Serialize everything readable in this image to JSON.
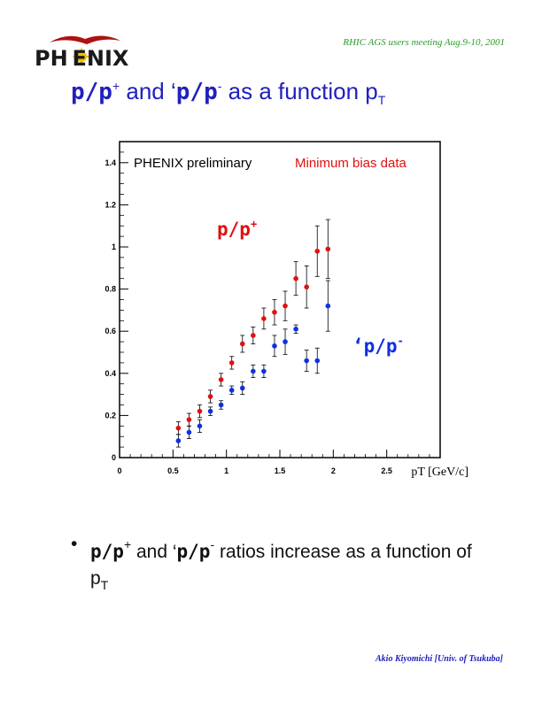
{
  "header": {
    "logo_text": "PH ENIX",
    "meeting": "RHIC AGS  users meeting   Aug.9-10, 2001"
  },
  "title": {
    "part1": "p/p",
    "sup1": "+",
    "part2": " and ‘",
    "part3": "p/p",
    "sup2": "-",
    "part4": " as a function p",
    "sub": "T"
  },
  "chart_data": {
    "type": "scatter",
    "title": "",
    "annotations": [
      "PHENIX preliminary",
      "Minimum bias data",
      "p/p+",
      "‘p/p-"
    ],
    "xlabel": "pT [GeV/c]",
    "ylabel": "",
    "xlim": [
      0,
      3
    ],
    "ylim": [
      0,
      1.5
    ],
    "x_ticks": [
      "0",
      "0.5",
      "1",
      "1.5",
      "2",
      "2.5"
    ],
    "y_ticks": [
      "0",
      "0.2",
      "0.4",
      "0.6",
      "0.8",
      "1",
      "1.2",
      "1.4"
    ],
    "grid": false,
    "series": [
      {
        "name": "p/p+",
        "color": "#e01010",
        "x": [
          0.55,
          0.65,
          0.75,
          0.85,
          0.95,
          1.05,
          1.15,
          1.25,
          1.35,
          1.45,
          1.55,
          1.65,
          1.75,
          1.85,
          1.95
        ],
        "y": [
          0.14,
          0.18,
          0.22,
          0.29,
          0.37,
          0.45,
          0.54,
          0.58,
          0.66,
          0.69,
          0.72,
          0.85,
          0.81,
          0.98,
          0.99
        ],
        "err": [
          0.03,
          0.03,
          0.03,
          0.03,
          0.03,
          0.03,
          0.04,
          0.04,
          0.05,
          0.06,
          0.07,
          0.08,
          0.1,
          0.12,
          0.14
        ]
      },
      {
        "name": "‘p/p-",
        "color": "#1030e0",
        "x": [
          0.55,
          0.65,
          0.75,
          0.85,
          0.95,
          1.05,
          1.15,
          1.25,
          1.35,
          1.45,
          1.55,
          1.65,
          1.75,
          1.85,
          1.95
        ],
        "y": [
          0.08,
          0.12,
          0.15,
          0.22,
          0.25,
          0.32,
          0.33,
          0.41,
          0.41,
          0.53,
          0.55,
          0.61,
          0.46,
          0.46,
          0.72
        ],
        "err": [
          0.03,
          0.03,
          0.03,
          0.02,
          0.02,
          0.02,
          0.03,
          0.03,
          0.03,
          0.05,
          0.06,
          0.02,
          0.05,
          0.06,
          0.12
        ]
      }
    ]
  },
  "bullet": {
    "dot": "•",
    "p1": "p/p",
    "sup1": "+",
    "t1": " and ‘",
    "p2": "p/p",
    "sup2": "-",
    "t2": "  ratios increase as a function of p",
    "sub": "T"
  },
  "footer": "Akio Kiyomichi [Univ. of Tsukuba]",
  "colors": {
    "title": "#2020c0",
    "red_series": "#e01010",
    "blue_series": "#1030e0",
    "meeting": "#2a9a2a"
  }
}
